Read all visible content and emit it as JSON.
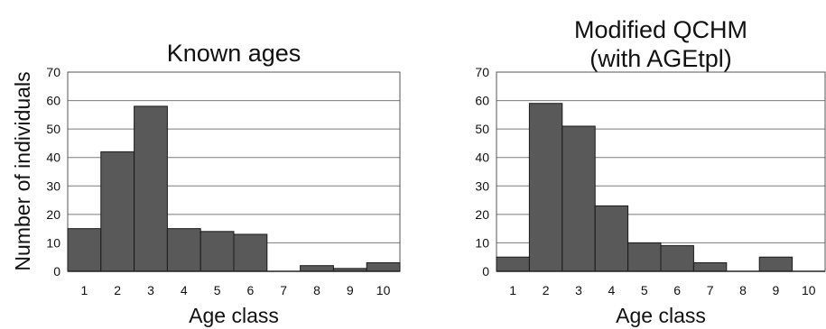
{
  "figure": {
    "ylabel": "Number of individuals"
  },
  "chart_data": [
    {
      "type": "bar",
      "title_lines": [
        "Known ages"
      ],
      "xlabel": "Age class",
      "ylabel": "Number of individuals",
      "categories": [
        "1",
        "2",
        "3",
        "4",
        "5",
        "6",
        "7",
        "8",
        "9",
        "10"
      ],
      "values": [
        15,
        42,
        58,
        15,
        14,
        13,
        0,
        2,
        1,
        3
      ],
      "ylim": [
        0,
        70
      ],
      "yticks": [
        0,
        10,
        20,
        30,
        40,
        50,
        60,
        70
      ],
      "grid": true,
      "bar_color": "#595959"
    },
    {
      "type": "bar",
      "title_lines": [
        "Modified QCHM",
        "(with AGEtpl)"
      ],
      "xlabel": "Age class",
      "ylabel": "",
      "categories": [
        "1",
        "2",
        "3",
        "4",
        "5",
        "6",
        "7",
        "8",
        "9",
        "10"
      ],
      "values": [
        5,
        59,
        51,
        23,
        10,
        9,
        3,
        0,
        5,
        0
      ],
      "ylim": [
        0,
        70
      ],
      "yticks": [
        0,
        10,
        20,
        30,
        40,
        50,
        60,
        70
      ],
      "grid": true,
      "bar_color": "#595959"
    }
  ]
}
